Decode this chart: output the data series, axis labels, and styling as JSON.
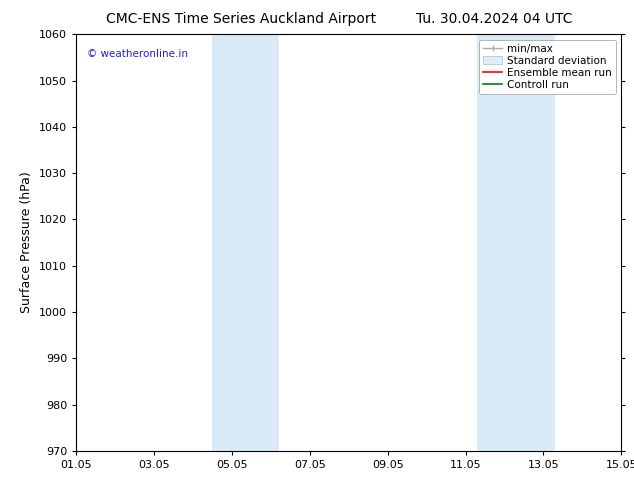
{
  "title_left": "CMC-ENS Time Series Auckland Airport",
  "title_right": "Tu. 30.04.2024 04 UTC",
  "ylabel": "Surface Pressure (hPa)",
  "ylim": [
    970,
    1060
  ],
  "yticks": [
    970,
    980,
    990,
    1000,
    1010,
    1020,
    1030,
    1040,
    1050,
    1060
  ],
  "xticks_labels": [
    "01.05",
    "03.05",
    "05.05",
    "07.05",
    "09.05",
    "11.05",
    "13.05",
    "15.05"
  ],
  "xticks_positions": [
    0,
    2,
    4,
    6,
    8,
    10,
    12,
    14
  ],
  "xlim": [
    0,
    14
  ],
  "shaded_regions": [
    {
      "x_start": 3.5,
      "x_end": 5.2
    },
    {
      "x_start": 10.3,
      "x_end": 12.3
    }
  ],
  "shaded_color": "#daeaf7",
  "watermark_text": "© weatheronline.in",
  "watermark_color": "#2222cc",
  "legend_labels": [
    "min/max",
    "Standard deviation",
    "Ensemble mean run",
    "Controll run"
  ],
  "legend_colors_line": [
    "#aaaaaa",
    "#bbccdd",
    "#ff0000",
    "#008000"
  ],
  "background_color": "#ffffff",
  "title_fontsize": 10,
  "axis_label_fontsize": 9,
  "tick_fontsize": 8,
  "legend_fontsize": 7.5
}
